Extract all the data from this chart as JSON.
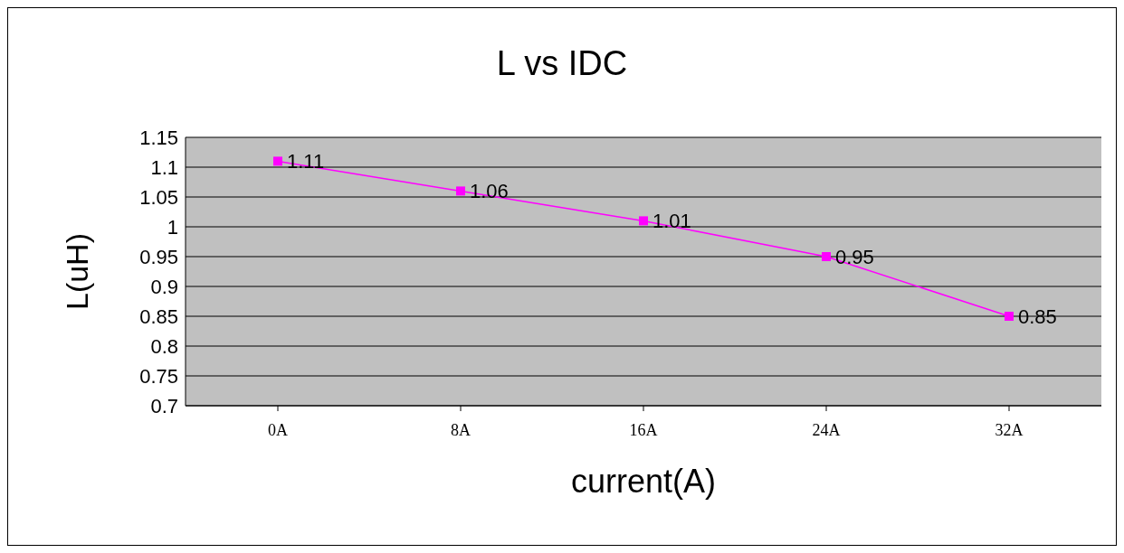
{
  "chart_data": {
    "type": "line",
    "title": "L vs IDC",
    "xlabel": "current(A)",
    "ylabel": "L(uH)",
    "categories": [
      "0A",
      "8A",
      "16A",
      "24A",
      "32A"
    ],
    "series": [
      {
        "color": "#ff00ff",
        "values": [
          1.11,
          1.06,
          1.01,
          0.95,
          0.85
        ]
      }
    ],
    "ylim": [
      0.7,
      1.15
    ],
    "yticks": [
      0.7,
      0.75,
      0.8,
      0.85,
      0.9,
      0.95,
      1,
      1.05,
      1.1,
      1.15
    ],
    "grid": "y",
    "marker": "square",
    "line_style": "solid",
    "data_labels": true
  }
}
